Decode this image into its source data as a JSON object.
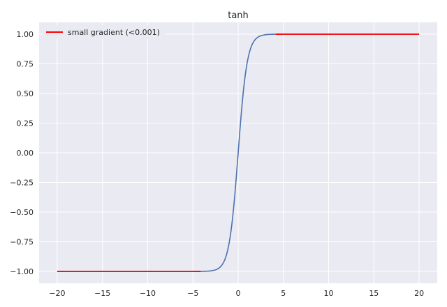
{
  "chart_data": {
    "type": "line",
    "title": "tanh",
    "xlabel": "",
    "ylabel": "",
    "xlim": [
      -22,
      22
    ],
    "ylim": [
      -1.1,
      1.1
    ],
    "xticks": [
      -20,
      -15,
      -10,
      -5,
      0,
      5,
      10,
      15,
      20
    ],
    "xtick_labels": [
      "−20",
      "−15",
      "−10",
      "−5",
      "0",
      "5",
      "10",
      "15",
      "20"
    ],
    "yticks": [
      1.0,
      0.75,
      0.5,
      0.25,
      0.0,
      -0.25,
      -0.5,
      -0.75,
      -1.0
    ],
    "ytick_labels": [
      "1.00",
      "0.75",
      "0.50",
      "0.25",
      "0.00",
      "−0.25",
      "−0.50",
      "−0.75",
      "−1.00"
    ],
    "grid": true,
    "legend_position": "top-left",
    "series": [
      {
        "function": "tanh",
        "x_range": [
          -20,
          20
        ],
        "color": "#4c72b0"
      },
      {
        "name": "small gradient (<0.001)",
        "function": "tanh",
        "segments": [
          [
            -20,
            -4.15
          ],
          [
            4.15,
            20
          ]
        ],
        "color": "#ff0000"
      }
    ]
  }
}
